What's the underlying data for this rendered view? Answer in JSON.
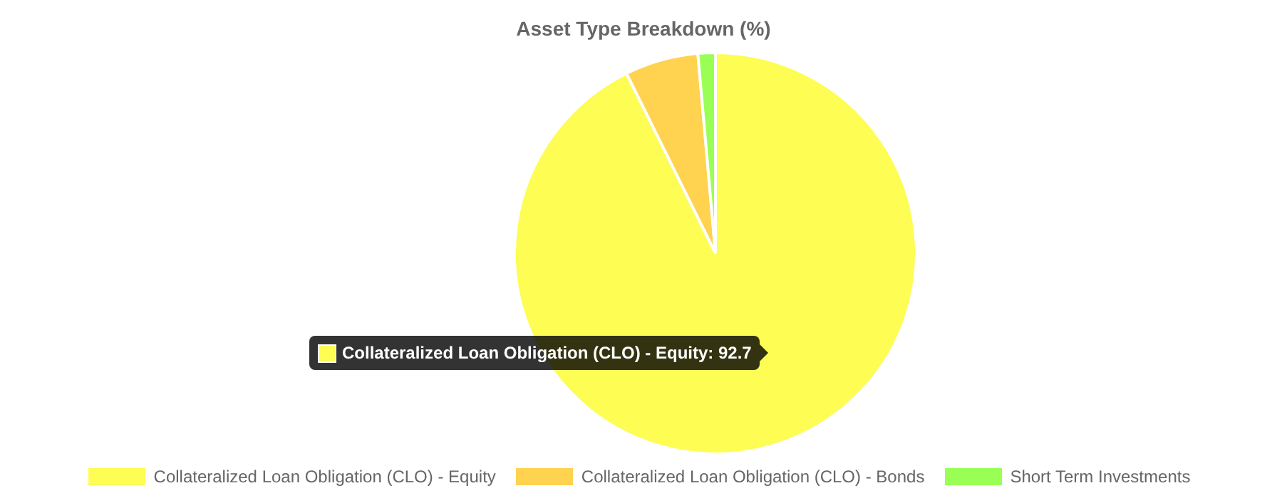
{
  "chart_data": {
    "type": "pie",
    "title": "Asset Type Breakdown (%)",
    "categories": [
      "Collateralized Loan Obligation (CLO) - Equity",
      "Collateralized Loan Obligation (CLO) - Bonds",
      "Short Term Investments"
    ],
    "values": [
      92.7,
      5.9,
      1.4
    ],
    "colors": [
      "#fdfd54",
      "#ffd24f",
      "#99ff55"
    ],
    "legend": "bottom",
    "annotations": [
      "Collateralized Loan Obligation (CLO) - Equity: 92.7"
    ]
  }
}
